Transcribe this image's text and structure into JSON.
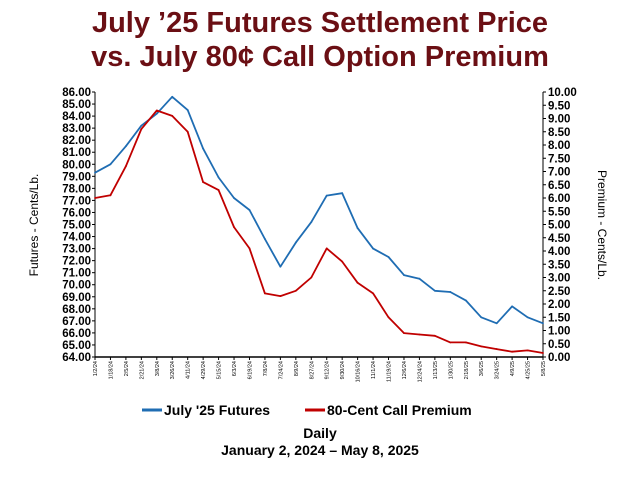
{
  "title_line1": "July ’25 Futures Settlement Price",
  "title_line2": "vs. July 80¢ Call Option Premium",
  "footer_line1": "Daily",
  "footer_line2": "January 2, 2024 – May 8, 2025",
  "colors": {
    "title": "#6b0f14",
    "futures": "#1f6db3",
    "premium": "#c00000"
  },
  "chart_data": {
    "type": "line",
    "ylabel_left": "Futures - Cents/Lb.",
    "ylabel_right": "Premium - Cents/Lb.",
    "ylim_left": [
      64,
      86
    ],
    "ylim_right": [
      0,
      10
    ],
    "yticks_left": [
      "64.00",
      "65.00",
      "66.00",
      "67.00",
      "68.00",
      "69.00",
      "70.00",
      "71.00",
      "72.00",
      "73.00",
      "74.00",
      "75.00",
      "76.00",
      "77.00",
      "78.00",
      "79.00",
      "80.00",
      "81.00",
      "82.00",
      "83.00",
      "84.00",
      "85.00",
      "86.00"
    ],
    "yticks_right": [
      "0.00",
      "0.50",
      "1.00",
      "1.50",
      "2.00",
      "2.50",
      "3.00",
      "3.50",
      "4.00",
      "4.50",
      "5.00",
      "5.50",
      "6.00",
      "6.50",
      "7.00",
      "7.50",
      "8.00",
      "8.50",
      "9.00",
      "9.50",
      "10.00"
    ],
    "grid": false,
    "legend_position": "bottom",
    "x": [
      "1/2/24",
      "1/18/24",
      "2/5/24",
      "2/21/24",
      "3/8/24",
      "3/26/24",
      "4/11/24",
      "4/29/24",
      "5/15/24",
      "6/3/24",
      "6/19/24",
      "7/8/24",
      "7/24/24",
      "8/9/24",
      "8/27/24",
      "9/12/24",
      "9/30/24",
      "10/16/24",
      "11/1/24",
      "11/19/24",
      "12/6/24",
      "12/24/24",
      "1/13/25",
      "1/30/25",
      "2/18/25",
      "3/6/25",
      "3/24/25",
      "4/9/25",
      "4/25/25",
      "5/8/25"
    ],
    "series": [
      {
        "name": "July '25 Futures",
        "axis": "left",
        "values": [
          79.3,
          80.0,
          81.5,
          83.2,
          84.2,
          85.6,
          84.5,
          81.3,
          78.9,
          77.2,
          76.2,
          73.8,
          71.5,
          73.5,
          75.2,
          77.4,
          77.6,
          74.7,
          73.0,
          72.3,
          70.8,
          70.5,
          69.5,
          69.4,
          68.7,
          67.3,
          66.8,
          68.2,
          67.3,
          66.8
        ]
      },
      {
        "name": "80-Cent Call Premium",
        "axis": "right",
        "values": [
          6.0,
          6.1,
          7.2,
          8.6,
          9.3,
          9.1,
          8.5,
          6.6,
          6.3,
          4.9,
          4.1,
          2.4,
          2.3,
          2.5,
          3.0,
          4.1,
          3.6,
          2.8,
          2.4,
          1.5,
          0.9,
          0.85,
          0.8,
          0.55,
          0.55,
          0.4,
          0.3,
          0.2,
          0.25,
          0.15
        ]
      }
    ]
  }
}
